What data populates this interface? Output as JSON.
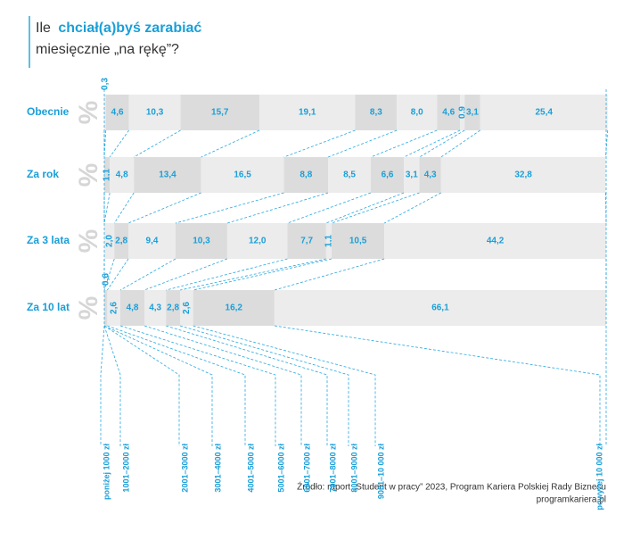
{
  "chart_data": {
    "type": "bar",
    "orientation": "horizontal",
    "stacked": true,
    "title": [
      "Ile",
      "chciał(a)byś zarabiać",
      "miesięcznie „na rękę”?"
    ],
    "unit": "%",
    "categories": [
      "Obecnie",
      "Za rok",
      "Za 3 lata",
      "Za 10 lat"
    ],
    "xlim": [
      0,
      100
    ],
    "series": [
      {
        "name": "poniżej 1000 zł",
        "color": "#ececec",
        "values": [
          0.3,
          null,
          null,
          null
        ],
        "value_labels": [
          "0,3",
          null,
          null,
          null
        ]
      },
      {
        "name": "1001–2000 zł",
        "color": "#dcdcdc",
        "values": [
          4.6,
          1.1,
          null,
          null
        ],
        "value_labels": [
          "4,6",
          "1,1",
          null,
          null
        ]
      },
      {
        "name": "2001–3000 zł",
        "color": "#ececec",
        "values": [
          10.3,
          4.8,
          2.0,
          null
        ],
        "value_labels": [
          "10,3",
          "4,8",
          "2,0",
          null
        ]
      },
      {
        "name": "3001–4000 zł",
        "color": "#dcdcdc",
        "values": [
          15.7,
          13.4,
          2.8,
          0.6
        ],
        "value_labels": [
          "15,7",
          "13,4",
          "2,8",
          "0,6"
        ]
      },
      {
        "name": "4001–5000 zł",
        "color": "#ececec",
        "values": [
          19.1,
          16.5,
          9.4,
          2.6
        ],
        "value_labels": [
          "19,1",
          "16,5",
          "9,4",
          "2,6"
        ]
      },
      {
        "name": "5001–6000 zł",
        "color": "#dcdcdc",
        "values": [
          8.3,
          8.8,
          10.3,
          4.8
        ],
        "value_labels": [
          "8,3",
          "8,8",
          "10,3",
          "4,8"
        ]
      },
      {
        "name": "6001–7000 zł",
        "color": "#ececec",
        "values": [
          8.0,
          8.5,
          12.0,
          4.3
        ],
        "value_labels": [
          "8,0",
          "8,5",
          "12,0",
          "4,3"
        ]
      },
      {
        "name": "7001–8000 zł",
        "color": "#dcdcdc",
        "values": [
          4.6,
          6.6,
          7.7,
          2.8
        ],
        "value_labels": [
          "4,6",
          "6,6",
          "7,7",
          "2,8"
        ]
      },
      {
        "name": "8001–9000 zł",
        "color": "#ececec",
        "values": [
          0.9,
          3.1,
          1.1,
          2.6
        ],
        "value_labels": [
          "0,9",
          "3,1",
          "1,1",
          "2,6"
        ]
      },
      {
        "name": "9001–10 000 zł",
        "color": "#dcdcdc",
        "values": [
          3.1,
          4.3,
          10.5,
          16.2
        ],
        "value_labels": [
          "3,1",
          "4,3",
          "10,5",
          "16,2"
        ]
      },
      {
        "name": "powyżej 10 000 zł",
        "color": "#ececec",
        "values": [
          25.4,
          32.8,
          44.2,
          66.1
        ],
        "value_labels": [
          "25,4",
          "32,8",
          "44,2",
          "66,1"
        ]
      }
    ],
    "source": [
      "Źródło: raport „Student w pracy” 2023, Program Kariera Polskiej Rady Biznesu",
      "programkariera.pl"
    ]
  }
}
